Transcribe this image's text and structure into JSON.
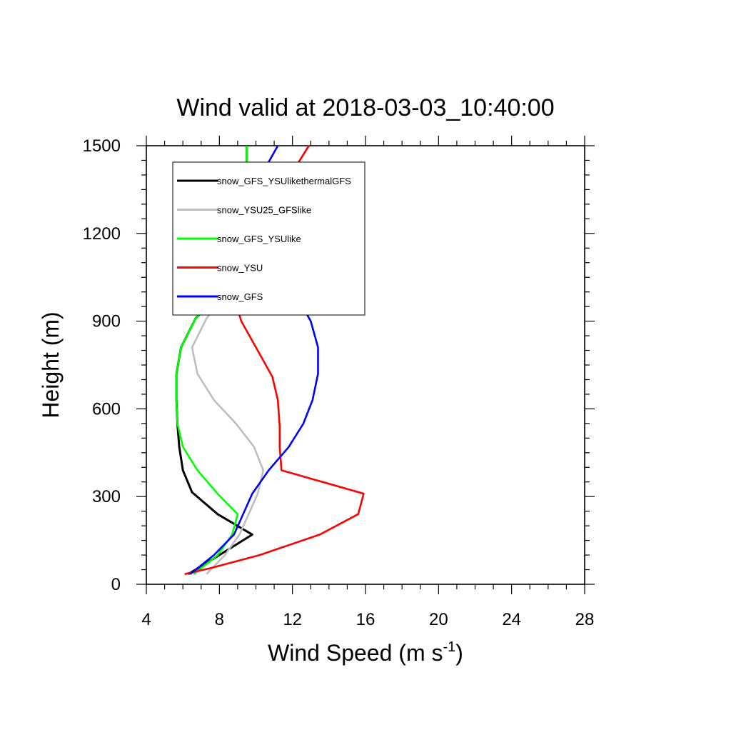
{
  "chart_data": {
    "type": "line",
    "title": "Wind valid at 2018-03-03_10:40:00",
    "xlabel": "Wind Speed (m s",
    "xlabel_superscript": "-1",
    "xlabel_suffix": ")",
    "ylabel": "Height (m)",
    "xlim": [
      4,
      28
    ],
    "ylim": [
      0,
      1500
    ],
    "xticks": [
      4,
      8,
      12,
      16,
      20,
      24,
      28
    ],
    "yticks": [
      0,
      300,
      600,
      900,
      1200,
      1500
    ],
    "grid": false,
    "legend_position": "top-left",
    "series": [
      {
        "name": "snow_GFS_YSUlikethermalGFS",
        "color": "#000000",
        "points": [
          [
            6.3,
            35
          ],
          [
            8.0,
            100
          ],
          [
            9.8,
            170
          ],
          [
            7.9,
            240
          ],
          [
            6.5,
            315
          ],
          [
            6.0,
            390
          ],
          [
            5.8,
            470
          ],
          [
            5.7,
            550
          ],
          [
            5.65,
            630
          ],
          [
            5.65,
            720
          ],
          [
            5.9,
            810
          ],
          [
            6.7,
            910
          ],
          [
            8.2,
            1000
          ],
          [
            9.0,
            1060
          ],
          [
            9.3,
            1110
          ],
          [
            9.4,
            1200
          ],
          [
            9.45,
            1300
          ],
          [
            9.5,
            1400
          ],
          [
            9.5,
            1500
          ]
        ]
      },
      {
        "name": "snow_YSU25_GFSlike",
        "color": "#bebebe",
        "points": [
          [
            7.3,
            35
          ],
          [
            8.3,
            100
          ],
          [
            9.1,
            170
          ],
          [
            9.6,
            240
          ],
          [
            10.1,
            310
          ],
          [
            10.4,
            390
          ],
          [
            9.9,
            470
          ],
          [
            8.9,
            550
          ],
          [
            7.7,
            630
          ],
          [
            6.8,
            720
          ],
          [
            6.5,
            810
          ],
          [
            7.3,
            910
          ],
          [
            8.5,
            1000
          ],
          [
            9.2,
            1060
          ],
          [
            9.3,
            1110
          ],
          [
            9.4,
            1200
          ],
          [
            9.45,
            1300
          ],
          [
            9.5,
            1400
          ],
          [
            9.5,
            1500
          ]
        ]
      },
      {
        "name": "snow_GFS_YSUlike",
        "color": "#00ff00",
        "points": [
          [
            6.6,
            35
          ],
          [
            7.9,
            100
          ],
          [
            8.7,
            170
          ],
          [
            9.0,
            240
          ],
          [
            7.9,
            310
          ],
          [
            6.8,
            390
          ],
          [
            6.0,
            470
          ],
          [
            5.7,
            550
          ],
          [
            5.65,
            630
          ],
          [
            5.65,
            720
          ],
          [
            5.9,
            810
          ],
          [
            6.7,
            910
          ],
          [
            8.2,
            1000
          ],
          [
            9.0,
            1060
          ],
          [
            9.3,
            1110
          ],
          [
            9.4,
            1200
          ],
          [
            9.45,
            1300
          ],
          [
            9.5,
            1400
          ],
          [
            9.5,
            1500
          ]
        ]
      },
      {
        "name": "snow_YSU",
        "color": "#ff0000",
        "points": [
          [
            6.1,
            35
          ],
          [
            7.5,
            55
          ],
          [
            10.2,
            100
          ],
          [
            13.5,
            170
          ],
          [
            15.6,
            240
          ],
          [
            15.9,
            310
          ],
          [
            11.4,
            390
          ],
          [
            11.3,
            470
          ],
          [
            11.3,
            540
          ],
          [
            11.2,
            630
          ],
          [
            10.9,
            710
          ],
          [
            9.2,
            900
          ],
          [
            8.7,
            1000
          ],
          [
            8.9,
            1110
          ],
          [
            9.7,
            1230
          ],
          [
            10.8,
            1330
          ],
          [
            12.2,
            1430
          ],
          [
            12.9,
            1500
          ]
        ]
      },
      {
        "name": "snow_GFS",
        "color": "#0000ff",
        "points": [
          [
            6.4,
            35
          ],
          [
            7.7,
            100
          ],
          [
            8.8,
            170
          ],
          [
            9.8,
            310
          ],
          [
            10.7,
            390
          ],
          [
            11.8,
            470
          ],
          [
            12.6,
            550
          ],
          [
            13.1,
            630
          ],
          [
            13.4,
            720
          ],
          [
            13.4,
            810
          ],
          [
            13.0,
            900
          ],
          [
            12.1,
            1000
          ],
          [
            10.8,
            1110
          ],
          [
            9.9,
            1200
          ],
          [
            9.9,
            1300
          ],
          [
            10.3,
            1400
          ],
          [
            11.2,
            1500
          ]
        ]
      }
    ]
  }
}
